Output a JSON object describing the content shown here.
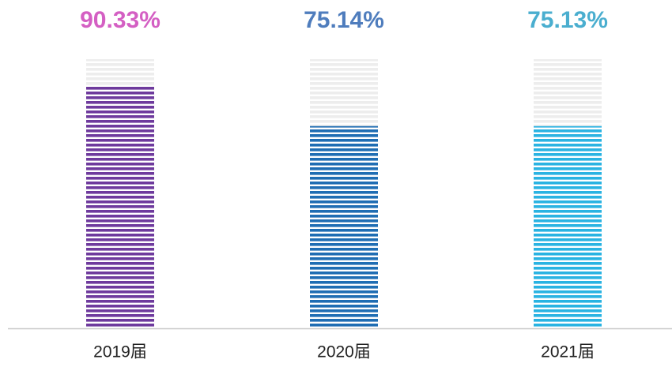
{
  "chart_data": {
    "type": "bar",
    "categories": [
      "2019届",
      "2020届",
      "2021届"
    ],
    "values": [
      90.33,
      75.14,
      75.13
    ],
    "value_labels": [
      "90.33%",
      "75.14%",
      "75.13%"
    ],
    "colors": [
      "#6e3a9d",
      "#1f6db3",
      "#29b3e2"
    ],
    "label_colors": [
      "#d45fc3",
      "#4f7dbd",
      "#4aaecf"
    ],
    "ylim": [
      0,
      100
    ]
  }
}
